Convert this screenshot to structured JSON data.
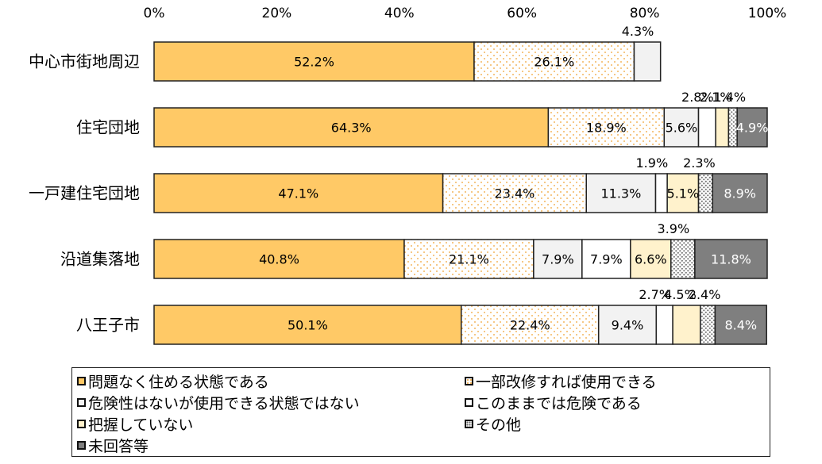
{
  "chart_data": {
    "type": "bar",
    "orientation": "horizontal",
    "stacked": true,
    "percent": true,
    "categories": [
      "中心市街地周辺",
      "住宅団地",
      "一戸建住宅団地",
      "沿道集落地",
      "八王子市"
    ],
    "x_ticks": [
      "0%",
      "20%",
      "40%",
      "60%",
      "80%",
      "100%"
    ],
    "xlim": [
      0,
      100
    ],
    "legend_position": "bottom",
    "series": [
      {
        "name": "問題なく住める状態である",
        "color": "#FFC966",
        "pattern": "solid",
        "values": [
          52.2,
          64.3,
          47.1,
          40.8,
          50.1
        ],
        "labels": [
          "52.2%",
          "64.3%",
          "47.1%",
          "40.8%",
          "50.1%"
        ]
      },
      {
        "name": "一部改修すれば使用できる",
        "color": "#FFFFFF",
        "pattern": "dots-orange",
        "values": [
          26.1,
          18.9,
          23.4,
          21.1,
          22.4
        ],
        "labels": [
          "26.1%",
          "18.9%",
          "23.4%",
          "21.1%",
          "22.4%"
        ]
      },
      {
        "name": "危険性はないが使用できる状態ではない",
        "color": "#F2F2F2",
        "pattern": "solid",
        "values": [
          4.3,
          5.6,
          11.3,
          7.9,
          9.4
        ],
        "labels": [
          "4.3%",
          "5.6%",
          "11.3%",
          "7.9%",
          "9.4%"
        ]
      },
      {
        "name": "このままでは危険である",
        "color": "#FFFFFF",
        "pattern": "solid",
        "values": [
          0,
          2.8,
          1.9,
          7.9,
          2.7
        ],
        "labels": [
          "",
          "2.8%",
          "1.9%",
          "7.9%",
          "2.7%"
        ]
      },
      {
        "name": "把握していない",
        "color": "#FFF2CC",
        "pattern": "solid",
        "values": [
          0,
          2.1,
          5.1,
          6.6,
          4.5
        ],
        "labels": [
          "",
          "2.1%",
          "5.1%",
          "6.6%",
          "4.5%"
        ]
      },
      {
        "name": "その他",
        "color": "#FFFFFF",
        "pattern": "dots-gray",
        "values": [
          0,
          1.4,
          2.3,
          3.9,
          2.4
        ],
        "labels": [
          "",
          "1.4%",
          "2.3%",
          "3.9%",
          "2.4%"
        ]
      },
      {
        "name": "未回答等",
        "color": "#7F7F7F",
        "pattern": "solid",
        "values": [
          0,
          4.9,
          8.9,
          11.8,
          8.4
        ],
        "labels": [
          "",
          "4.9%",
          "8.9%",
          "11.8%",
          "8.4%"
        ]
      }
    ]
  }
}
